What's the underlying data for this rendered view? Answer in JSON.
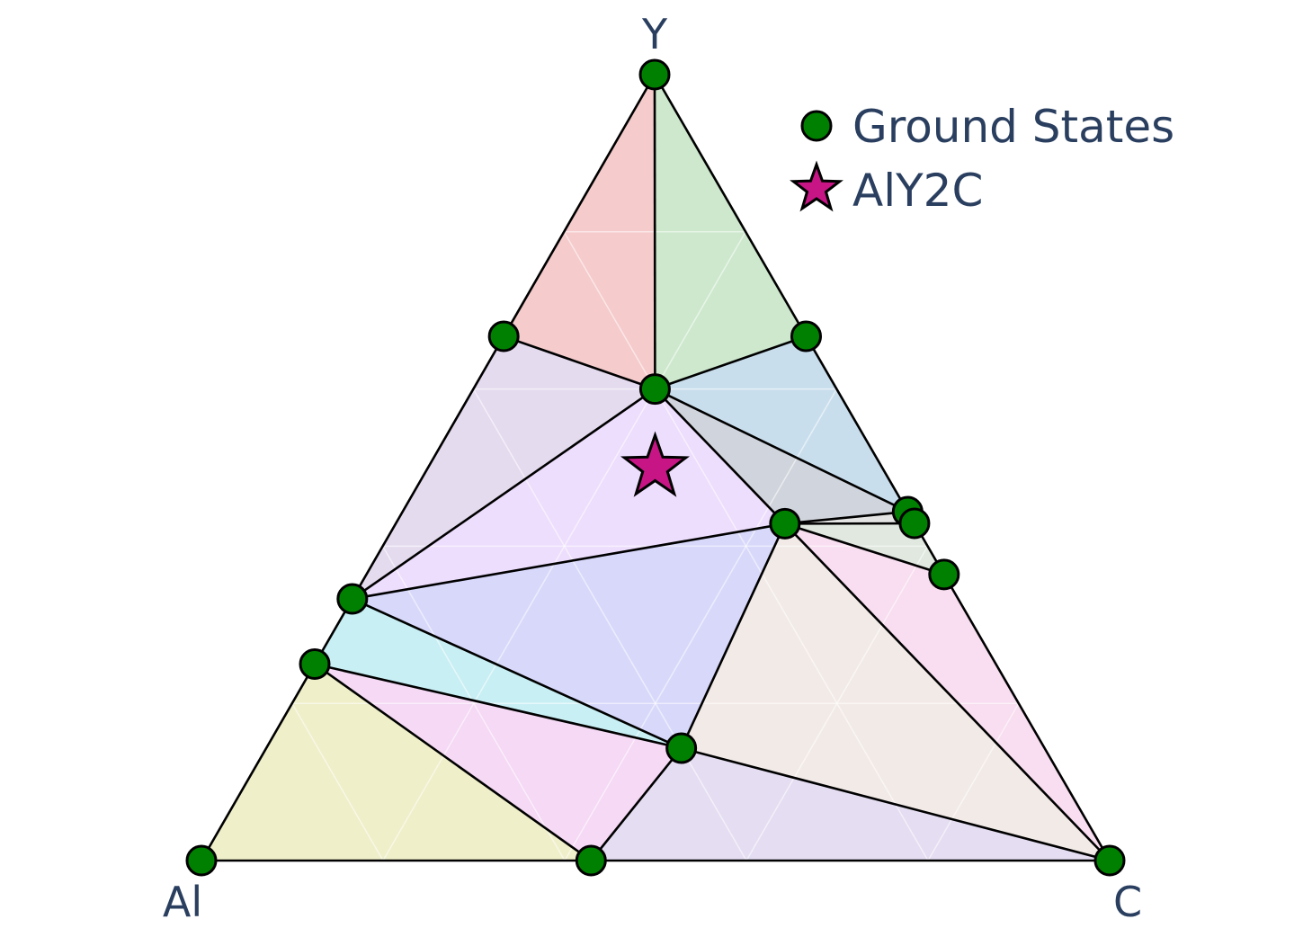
{
  "chart_data": {
    "type": "ternary-phase-diagram",
    "vertices": {
      "top": "Y",
      "left": "Al",
      "right": "C"
    },
    "legend": {
      "ground_states_label": "Ground States",
      "target_label": "AlY2C"
    },
    "colors": {
      "ground_state_marker": "#008000",
      "target_marker": "#c71585",
      "text": "#2a3f5f",
      "tie_line": "#000000"
    },
    "ground_states": [
      {
        "Al": 0,
        "Y": 1,
        "C": 0
      },
      {
        "Al": 1,
        "Y": 0,
        "C": 0
      },
      {
        "Al": 0,
        "Y": 0,
        "C": 1
      },
      {
        "Al": 0.333,
        "Y": 0.667,
        "C": 0
      },
      {
        "Al": 0,
        "Y": 0.667,
        "C": 0.333
      },
      {
        "Al": 0.2,
        "Y": 0.6,
        "C": 0.2
      },
      {
        "Al": 0,
        "Y": 0.444,
        "C": 0.556
      },
      {
        "Al": 0,
        "Y": 0.429,
        "C": 0.571
      },
      {
        "Al": 0.143,
        "Y": 0.429,
        "C": 0.429
      },
      {
        "Al": 0,
        "Y": 0.364,
        "C": 0.636
      },
      {
        "Al": 0.667,
        "Y": 0.333,
        "C": 0
      },
      {
        "Al": 0.75,
        "Y": 0.25,
        "C": 0
      },
      {
        "Al": 0.4,
        "Y": 0.143,
        "C": 0.457
      },
      {
        "Al": 0.571,
        "Y": 0,
        "C": 0.429
      }
    ],
    "target": {
      "Al": 0.25,
      "Y": 0.5,
      "C": 0.25
    },
    "facets": [
      {
        "vertices": [
          0,
          3,
          5
        ],
        "color": "#d62728"
      },
      {
        "vertices": [
          0,
          4,
          5
        ],
        "color": "#2ca02c"
      },
      {
        "vertices": [
          3,
          5,
          10
        ],
        "color": "#9467bd"
      },
      {
        "vertices": [
          4,
          5,
          6
        ],
        "color": "#1f77b4"
      },
      {
        "vertices": [
          5,
          6,
          8
        ],
        "color": "#3b4a6b"
      },
      {
        "vertices": [
          6,
          7,
          8
        ],
        "color": "#8c8c8c"
      },
      {
        "vertices": [
          7,
          8,
          9
        ],
        "color": "#7f9f7f"
      },
      {
        "vertices": [
          5,
          8,
          10
        ],
        "color": "#b377f5"
      },
      {
        "vertices": [
          8,
          10,
          12
        ],
        "color": "#5b5bf0"
      },
      {
        "vertices": [
          10,
          11,
          12
        ],
        "color": "#17becf"
      },
      {
        "vertices": [
          8,
          9,
          2
        ],
        "color": "#e377c2"
      },
      {
        "vertices": [
          8,
          12,
          2
        ],
        "color": "#c9a79a"
      },
      {
        "vertices": [
          12,
          13,
          2
        ],
        "color": "#9370c8"
      },
      {
        "vertices": [
          11,
          12,
          13
        ],
        "color": "#d65fd6"
      },
      {
        "vertices": [
          1,
          11,
          13
        ],
        "color": "#bcbd22"
      }
    ],
    "grid": true,
    "legend_position": "top-right"
  }
}
